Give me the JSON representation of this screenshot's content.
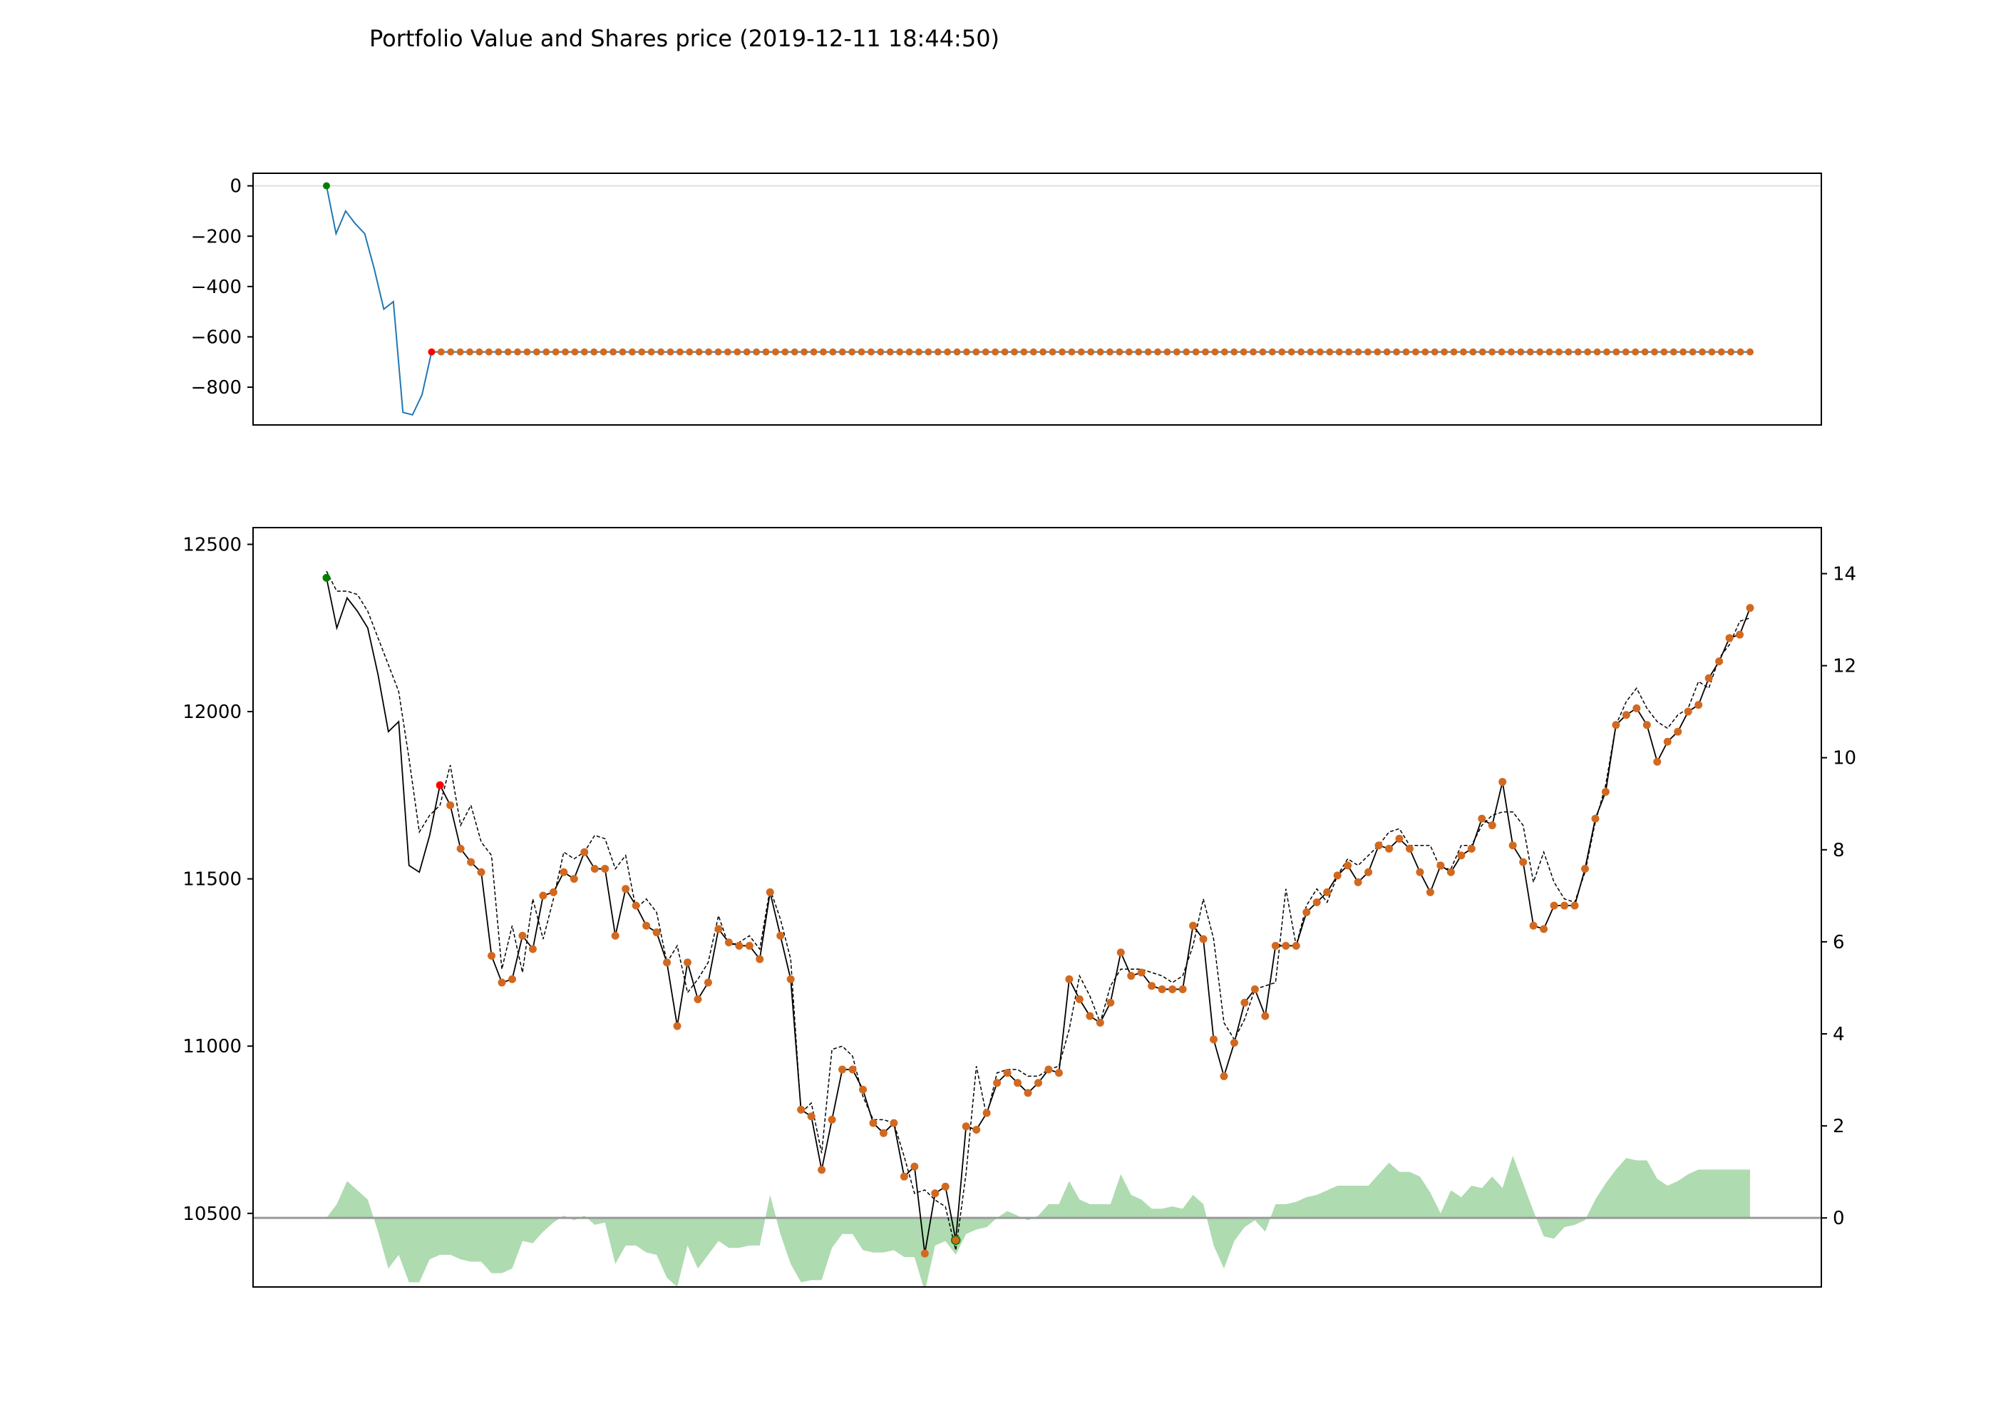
{
  "title": "Portfolio Value and Shares price (2019-12-11 18:44:50)",
  "colors": {
    "portfolio_line": "#1f77b4",
    "trade_marker": "#d2691e",
    "start_marker": "#008000",
    "sell_marker": "#ff0000",
    "price_line": "#000000",
    "avg_line": "#000000",
    "oscillator_fill": "#4caf50",
    "zero_line": "#999999"
  },
  "chart_data": [
    {
      "type": "line",
      "name": "portfolio",
      "ylim": [
        -950,
        50
      ],
      "y_ticks": [
        0,
        -200,
        -400,
        -600,
        -800
      ],
      "y_tick_labels": [
        "0",
        "−200",
        "−400",
        "−600",
        "−800"
      ],
      "grid": false,
      "values": [
        0,
        -190,
        -100,
        -150,
        -190,
        -330,
        -490,
        -460,
        -900,
        -910,
        -830,
        -660
      ],
      "flat_value": -660,
      "flat_count": 138
    },
    {
      "type": "line",
      "name": "shares",
      "ylim": [
        10280,
        12550
      ],
      "y_ticks": [
        12500,
        12000,
        11500,
        11000,
        10500
      ],
      "y_tick_labels": [
        "12500",
        "12000",
        "11500",
        "11000",
        "10500"
      ],
      "y2lim": [
        -1.5,
        15
      ],
      "y2_ticks": [
        14,
        12,
        10,
        8,
        6,
        4,
        2,
        0
      ],
      "y2_tick_labels": [
        "14",
        "12",
        "10",
        "8",
        "6",
        "4",
        "2",
        "0"
      ],
      "grid": false,
      "price": [
        12400,
        12250,
        12340,
        12300,
        12250,
        12110,
        11940,
        11970,
        11540,
        11520,
        11630,
        11780,
        11720,
        11590,
        11550,
        11520,
        11270,
        11190,
        11200,
        11330,
        11290,
        11450,
        11460,
        11520,
        11500,
        11580,
        11530,
        11530,
        11330,
        11470,
        11420,
        11360,
        11340,
        11250,
        11060,
        11250,
        11140,
        11190,
        11350,
        11310,
        11300,
        11300,
        11260,
        11460,
        11330,
        11200,
        10810,
        10790,
        10630,
        10780,
        10930,
        10930,
        10870,
        10770,
        10740,
        10770,
        10610,
        10640,
        10380,
        10560,
        10580,
        10420,
        10760,
        10750,
        10800,
        10890,
        10920,
        10890,
        10860,
        10890,
        10930,
        10920,
        11200,
        11140,
        11090,
        11070,
        11130,
        11280,
        11210,
        11220,
        11180,
        11170,
        11170,
        11170,
        11360,
        11320,
        11020,
        10910,
        11010,
        11130,
        11170,
        11090,
        11300,
        11300,
        11300,
        11400,
        11430,
        11460,
        11510,
        11540,
        11490,
        11520,
        11600,
        11590,
        11620,
        11590,
        11520,
        11460,
        11540,
        11520,
        11570,
        11590,
        11680,
        11660,
        11790,
        11600,
        11550,
        11360,
        11350,
        11420,
        11420,
        11420,
        11530,
        11680,
        11760,
        11960,
        11990,
        12010,
        11960,
        11850,
        11910,
        11940,
        12000,
        12020,
        12100,
        12150,
        12220,
        12230,
        12310
      ],
      "avg_line": [
        12420,
        12360,
        12360,
        12350,
        12300,
        12220,
        12140,
        12060,
        11860,
        11640,
        11690,
        11720,
        11840,
        11660,
        11720,
        11610,
        11570,
        11230,
        11360,
        11220,
        11440,
        11320,
        11440,
        11580,
        11560,
        11580,
        11630,
        11620,
        11530,
        11570,
        11410,
        11440,
        11400,
        11250,
        11300,
        11160,
        11200,
        11250,
        11390,
        11300,
        11310,
        11330,
        11290,
        11470,
        11380,
        11260,
        10800,
        10830,
        10680,
        10990,
        11000,
        10970,
        10850,
        10780,
        10780,
        10770,
        10670,
        10560,
        10570,
        10540,
        10520,
        10390,
        10620,
        10940,
        10790,
        10920,
        10930,
        10930,
        10910,
        10910,
        10930,
        10940,
        11050,
        11210,
        11150,
        11070,
        11180,
        11230,
        11230,
        11230,
        11220,
        11210,
        11190,
        11210,
        11300,
        11440,
        11320,
        11070,
        11020,
        11080,
        11170,
        11180,
        11190,
        11470,
        11300,
        11420,
        11470,
        11430,
        11510,
        11560,
        11540,
        11570,
        11600,
        11640,
        11650,
        11600,
        11600,
        11600,
        11530,
        11530,
        11600,
        11600,
        11660,
        11690,
        11700,
        11700,
        11660,
        11490,
        11580,
        11490,
        11440,
        11430,
        11520,
        11670,
        11780,
        11960,
        12030,
        12070,
        12010,
        11970,
        11950,
        11990,
        12010,
        12090,
        12070,
        12160,
        12200,
        12270,
        12280
      ],
      "oscillator": [
        0,
        0.3,
        0.8,
        0.6,
        0.4,
        -0.3,
        -1.1,
        -0.8,
        -1.4,
        -1.4,
        -0.9,
        -0.8,
        -0.8,
        -0.9,
        -0.95,
        -0.95,
        -1.2,
        -1.2,
        -1.1,
        -0.5,
        -0.55,
        -0.3,
        -0.1,
        0.05,
        -0.05,
        0.05,
        -0.15,
        -0.1,
        -1.0,
        -0.6,
        -0.6,
        -0.75,
        -0.8,
        -1.3,
        -1.5,
        -0.6,
        -1.1,
        -0.8,
        -0.5,
        -0.65,
        -0.65,
        -0.6,
        -0.6,
        0.5,
        -0.35,
        -1.0,
        -1.4,
        -1.35,
        -1.35,
        -0.65,
        -0.35,
        -0.35,
        -0.7,
        -0.75,
        -0.75,
        -0.7,
        -0.85,
        -0.85,
        -1.6,
        -0.6,
        -0.5,
        -0.8,
        -0.35,
        -0.25,
        -0.2,
        0,
        0.15,
        0.05,
        -0.05,
        0.05,
        0.3,
        0.3,
        0.8,
        0.4,
        0.3,
        0.3,
        0.3,
        0.95,
        0.5,
        0.4,
        0.2,
        0.2,
        0.25,
        0.2,
        0.5,
        0.3,
        -0.6,
        -1.1,
        -0.5,
        -0.2,
        -0.05,
        -0.3,
        0.3,
        0.3,
        0.35,
        0.45,
        0.5,
        0.6,
        0.7,
        0.7,
        0.7,
        0.7,
        0.95,
        1.2,
        1.0,
        1.0,
        0.9,
        0.55,
        0.1,
        0.6,
        0.45,
        0.7,
        0.65,
        0.9,
        0.65,
        1.35,
        0.75,
        0.15,
        -0.4,
        -0.45,
        -0.2,
        -0.15,
        -0.05,
        0.4,
        0.75,
        1.05,
        1.3,
        1.25,
        1.25,
        0.85,
        0.7,
        0.8,
        0.95,
        1.05,
        1.05,
        1.05,
        1.05,
        1.05,
        1.05
      ]
    }
  ]
}
